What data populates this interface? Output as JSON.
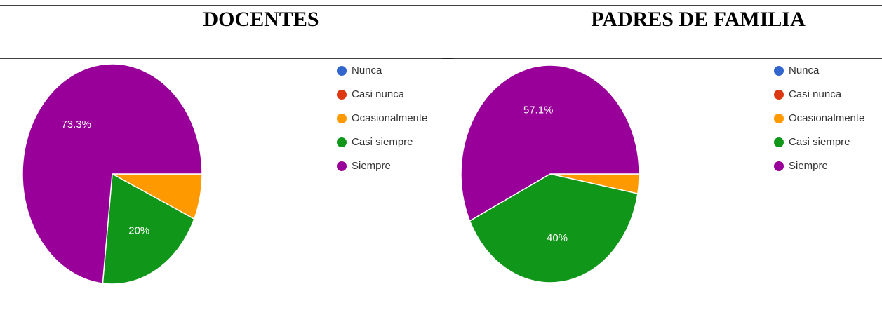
{
  "chart_data": [
    {
      "type": "pie",
      "title": "DOCENTES",
      "categories": [
        "Nunca",
        "Casi nunca",
        "Ocasionalmente",
        "Casi siempre",
        "Siempre"
      ],
      "values": [
        0,
        0,
        6.7,
        20,
        73.3
      ],
      "value_labels": [
        null,
        null,
        null,
        "20%",
        "73.3%"
      ],
      "colors": [
        "#3366cc",
        "#dc3912",
        "#ff9900",
        "#109618",
        "#990099"
      ]
    },
    {
      "type": "pie",
      "title": "PADRES DE FAMILIA",
      "categories": [
        "Nunca",
        "Casi nunca",
        "Ocasionalmente",
        "Casi siempre",
        "Siempre"
      ],
      "values": [
        0,
        0,
        2.9,
        40,
        57.1
      ],
      "value_labels": [
        null,
        null,
        null,
        "40%",
        "57.1%"
      ],
      "colors": [
        "#3366cc",
        "#dc3912",
        "#ff9900",
        "#109618",
        "#990099"
      ]
    }
  ]
}
